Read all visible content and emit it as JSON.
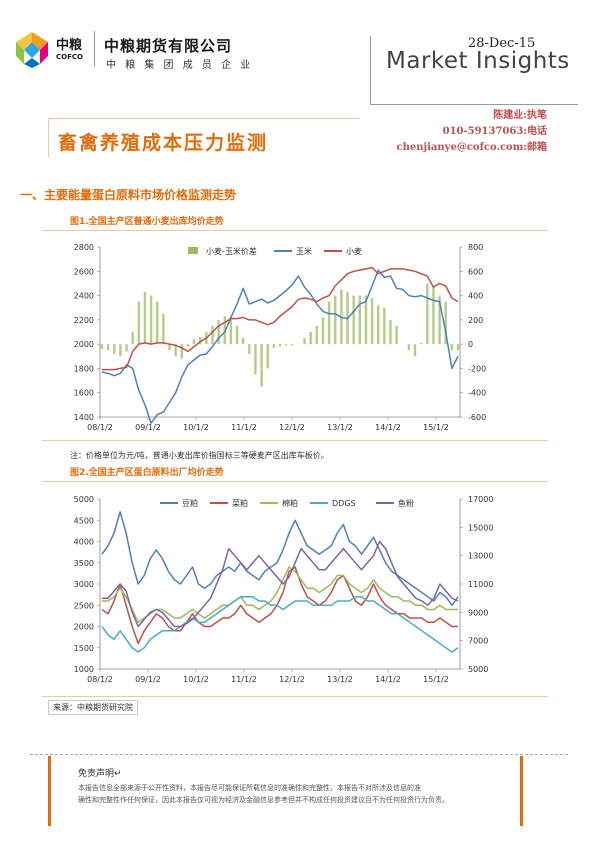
{
  "header": {
    "logo_mark_cn": "中粮",
    "logo_mark_en": "COFCO",
    "company_name": "中粮期货有限公司",
    "company_sub": "中 粮 集 团 成 员 企 业",
    "date": "28-Dec-15",
    "market_insights": "Market Insights",
    "author": "陈建业:执笔",
    "phone": "010-59137063:电话",
    "email": "chenjianye@cofco.com:邮箱"
  },
  "colors": {
    "accent": "#e36c0a",
    "author": "#c0504d",
    "divider": "#f0c8a0"
  },
  "report_title": "畜禽养殖成本压力监测",
  "section_title": "一、主要能量蛋白原料市场价格监测走势",
  "figures": {
    "fig1_title": "图1.全国主产区普通小麦出库均价走势",
    "note": "注：价格单位为元/吨，普通小麦出库价指国标三等硬麦产区出库车板价。",
    "fig2_title": "图2.全国主产区蛋白原料出厂均价走势",
    "source": "来源：中粮期货研究院"
  },
  "disclaimer": {
    "heading": "免责声明↵",
    "line1": "本报告信息全部来源于公开性资料，本报告尽可能保证所载信息的准确性和完整性，本报告不对所涉及信息的准",
    "line2": "确性和完整性作任何保证，因此本报告仅可视为经济及金融信息参考但并不构成任何投资建议且不为任何投资行为负责。"
  },
  "chart_data": [
    {
      "type": "line",
      "x_ticks": [
        "08/1/2",
        "09/1/2",
        "10/1/2",
        "11/1/2",
        "12/1/2",
        "13/1/2",
        "14/1/2",
        "15/1/2"
      ],
      "ylim": [
        1400,
        2800
      ],
      "y_ticks": [
        "1400",
        "1600",
        "1800",
        "2000",
        "2200",
        "2400",
        "2600",
        "2800"
      ],
      "y2lim": [
        -600,
        800
      ],
      "y2_ticks": [
        "-600",
        "-400",
        "-200",
        "0",
        "200",
        "400",
        "600",
        "800"
      ],
      "legend_position": "top",
      "series": [
        {
          "name": "小麦-玉米价差",
          "kind": "bar",
          "axis": "right",
          "color": "#9bbb59",
          "values": [
            -40,
            -50,
            -80,
            -100,
            -60,
            100,
            350,
            430,
            400,
            350,
            250,
            -50,
            -100,
            -120,
            -20,
            40,
            60,
            100,
            150,
            200,
            230,
            230,
            150,
            50,
            -80,
            -250,
            -350,
            -200,
            -30,
            -20,
            -10,
            -10,
            0,
            50,
            100,
            150,
            220,
            350,
            400,
            450,
            430,
            400,
            400,
            400,
            380,
            320,
            300,
            200,
            150,
            0,
            -50,
            -100,
            10,
            500,
            480,
            400,
            350,
            -50,
            -50
          ]
        },
        {
          "name": "玉米",
          "kind": "line",
          "axis": "left",
          "color": "#4f81bd",
          "values": [
            1770,
            1760,
            1740,
            1760,
            1830,
            1800,
            1620,
            1500,
            1350,
            1420,
            1440,
            1520,
            1600,
            1730,
            1830,
            1870,
            1910,
            1920,
            1980,
            2050,
            2100,
            2220,
            2330,
            2460,
            2330,
            2350,
            2370,
            2340,
            2360,
            2400,
            2440,
            2490,
            2560,
            2470,
            2410,
            2330,
            2270,
            2250,
            2250,
            2220,
            2210,
            2270,
            2330,
            2350,
            2480,
            2610,
            2550,
            2560,
            2460,
            2450,
            2400,
            2390,
            2400,
            2380,
            2360,
            2350,
            2100,
            1800,
            1900
          ]
        },
        {
          "name": "小麦",
          "kind": "line",
          "axis": "left",
          "color": "#c0504d",
          "values": [
            1790,
            1790,
            1790,
            1800,
            1810,
            1940,
            2000,
            2010,
            2000,
            2010,
            2010,
            2000,
            1990,
            1970,
            1940,
            1980,
            2020,
            2050,
            2100,
            2150,
            2180,
            2210,
            2210,
            2220,
            2200,
            2200,
            2180,
            2160,
            2180,
            2230,
            2270,
            2310,
            2370,
            2380,
            2370,
            2350,
            2380,
            2400,
            2480,
            2530,
            2580,
            2600,
            2610,
            2620,
            2630,
            2580,
            2600,
            2620,
            2620,
            2620,
            2610,
            2600,
            2580,
            2560,
            2470,
            2500,
            2480,
            2380,
            2350
          ]
        }
      ]
    },
    {
      "type": "line",
      "x_ticks": [
        "08/1/2",
        "09/1/2",
        "10/1/2",
        "11/1/2",
        "12/1/2",
        "13/1/2",
        "14/1/2",
        "15/1/2"
      ],
      "ylim": [
        1000,
        5000
      ],
      "y_ticks": [
        "1000",
        "1500",
        "2000",
        "2500",
        "3000",
        "3500",
        "4000",
        "4500",
        "5000"
      ],
      "y2lim": [
        5000,
        17000
      ],
      "y2_ticks": [
        "5000",
        "7000",
        "9000",
        "11000",
        "13000",
        "15000",
        "17000"
      ],
      "legend_position": "top",
      "series": [
        {
          "name": "豆粕",
          "axis": "left",
          "color": "#4f81bd",
          "values": [
            3700,
            3900,
            4200,
            4700,
            4200,
            3500,
            3000,
            3200,
            3600,
            3800,
            3600,
            3300,
            3100,
            3000,
            3200,
            3400,
            3000,
            2900,
            3000,
            3200,
            3300,
            3400,
            3300,
            3500,
            3300,
            3200,
            3100,
            3300,
            3400,
            3500,
            3800,
            4200,
            4500,
            4200,
            3900,
            3800,
            3700,
            3800,
            3900,
            4200,
            4400,
            4000,
            3900,
            3700,
            3900,
            4100,
            3800,
            3500,
            3300,
            3200,
            3100,
            3000,
            2900,
            2800,
            2700,
            2600,
            2800,
            2700,
            2500,
            2700
          ]
        },
        {
          "name": "菜粕",
          "axis": "left",
          "color": "#c0504d",
          "values": [
            2400,
            2300,
            2600,
            3000,
            2500,
            2000,
            1600,
            1900,
            2100,
            2300,
            2200,
            2000,
            1900,
            1900,
            2100,
            2300,
            2100,
            2000,
            2000,
            2100,
            2200,
            2200,
            2300,
            2500,
            2300,
            2200,
            2100,
            2200,
            2300,
            2500,
            2800,
            3300,
            3400,
            3000,
            2700,
            2600,
            2500,
            2600,
            2800,
            3100,
            3200,
            2900,
            2600,
            2500,
            2700,
            3000,
            2700,
            2500,
            2400,
            2300,
            2300,
            2200,
            2200,
            2200,
            2100,
            2100,
            2200,
            2100,
            2000,
            2000
          ]
        },
        {
          "name": "棉粕",
          "axis": "left",
          "color": "#9bbb59",
          "values": [
            2600,
            2600,
            2700,
            2900,
            2700,
            2400,
            2100,
            2200,
            2300,
            2400,
            2400,
            2300,
            2200,
            2200,
            2300,
            2400,
            2300,
            2200,
            2300,
            2400,
            2500,
            2500,
            2600,
            2700,
            2500,
            2500,
            2400,
            2500,
            2600,
            2800,
            3100,
            3400,
            3300,
            3100,
            2900,
            2900,
            2800,
            2900,
            3000,
            3200,
            3200,
            3000,
            2900,
            2800,
            2900,
            3100,
            2900,
            2800,
            2700,
            2700,
            2600,
            2600,
            2500,
            2500,
            2400,
            2400,
            2500,
            2400,
            2400,
            2400
          ]
        },
        {
          "name": "DDGS",
          "axis": "left",
          "color": "#4bacc6",
          "values": [
            2000,
            1800,
            1700,
            1900,
            1700,
            1500,
            1400,
            1500,
            1700,
            1800,
            1900,
            1900,
            1900,
            2000,
            2100,
            2200,
            2100,
            2100,
            2200,
            2300,
            2400,
            2500,
            2600,
            2700,
            2700,
            2700,
            2600,
            2600,
            2500,
            2500,
            2400,
            2500,
            2600,
            2600,
            2600,
            2500,
            2500,
            2500,
            2500,
            2600,
            2600,
            2600,
            2700,
            2700,
            2600,
            2600,
            2500,
            2400,
            2300,
            2300,
            2200,
            2100,
            2000,
            1900,
            1800,
            1700,
            1600,
            1500,
            1400,
            1500
          ]
        },
        {
          "name": "鱼粉",
          "axis": "right",
          "color": "#8064a2",
          "values": [
            10000,
            10000,
            10500,
            11000,
            10500,
            9000,
            8000,
            8500,
            9000,
            9200,
            9000,
            8500,
            8000,
            8000,
            8200,
            8500,
            9000,
            9500,
            10000,
            11000,
            12000,
            13500,
            13000,
            12500,
            12000,
            12500,
            13000,
            12500,
            12000,
            11500,
            11000,
            11500,
            12500,
            13500,
            13000,
            12500,
            12000,
            12000,
            12500,
            13000,
            13500,
            13000,
            12500,
            12000,
            12500,
            13000,
            14000,
            13500,
            12500,
            11500,
            11000,
            10500,
            10000,
            9800,
            9500,
            10000,
            11000,
            10500,
            10000,
            9800
          ]
        }
      ]
    }
  ]
}
